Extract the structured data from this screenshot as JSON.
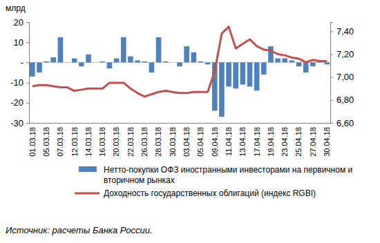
{
  "chart_data": {
    "type": "bar",
    "ylabel": "млрд",
    "source": "Источник: расчеты Банка России.",
    "legend": "bottom",
    "categories": [
      "01.03.18",
      null,
      "05.03.18",
      null,
      "07.03.18",
      null,
      "12.03.18",
      null,
      "14.03.18",
      null,
      "16.03.18",
      null,
      "20.03.18",
      null,
      "22.03.18",
      null,
      "26.03.18",
      null,
      "28.03.18",
      null,
      "30.03.18",
      null,
      "03.04.18",
      null,
      "05.04.18",
      null,
      "09.04.18",
      null,
      "11.04.18",
      null,
      "13.04.18",
      null,
      "17.04.18",
      null,
      "19.04.18",
      null,
      "23.04.18",
      null,
      "25.04.18",
      null,
      "27.04.18",
      null,
      "30.04.18"
    ],
    "series": [
      {
        "name": "Нетто-покупки ОФЗ иностранными инвесторами на первичном и вторичном рынках",
        "type": "bar",
        "color": "#4f81bd",
        "values": [
          -7,
          -5,
          0.5,
          2.5,
          12.5,
          0,
          2,
          -2,
          4,
          0,
          0.5,
          -3,
          2,
          12.5,
          3,
          1,
          0.5,
          -5,
          12.5,
          0.5,
          0,
          -2,
          8,
          5,
          0.5,
          -1,
          -24,
          -27,
          -12,
          -13,
          -11,
          -12,
          -14,
          -6,
          8,
          2,
          2,
          1,
          -2,
          -5,
          -2,
          1,
          -1
        ]
      },
      {
        "name": "Доходность государственных облигаций (индекс RGBI)",
        "type": "line",
        "axis": "y2",
        "color": "#c0504d",
        "values": [
          6.92,
          6.93,
          6.93,
          6.92,
          6.91,
          6.91,
          6.88,
          6.89,
          6.9,
          6.9,
          6.9,
          6.95,
          6.95,
          6.95,
          6.9,
          6.86,
          6.83,
          6.85,
          6.87,
          6.88,
          6.87,
          6.86,
          6.86,
          6.87,
          6.87,
          6.87,
          7.05,
          7.38,
          7.44,
          7.25,
          7.29,
          7.33,
          7.27,
          7.24,
          7.23,
          7.2,
          7.19,
          7.17,
          7.16,
          7.13,
          7.15,
          7.14,
          7.14
        ]
      }
    ],
    "ylim": [
      -30,
      20
    ],
    "yticks": [
      -30,
      -20,
      -10,
      {
        "value": 0,
        "label": "-"
      },
      10,
      20
    ],
    "y2lim": [
      6.6,
      7.48
    ],
    "y2ticks": [
      {
        "value": 6.6,
        "label": "6,60"
      },
      {
        "value": 6.8,
        "label": "6,80"
      },
      {
        "value": 7.0,
        "label": "7,00"
      },
      {
        "value": 7.2,
        "label": "7,20"
      },
      {
        "value": 7.4,
        "label": "7,40"
      }
    ]
  }
}
